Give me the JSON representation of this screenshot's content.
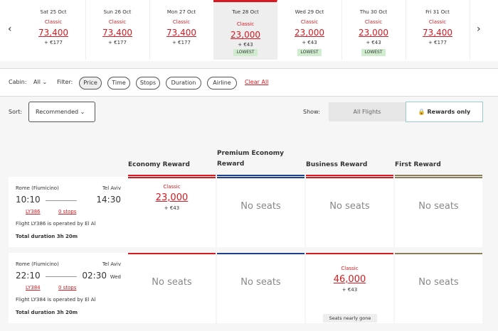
{
  "dates": [
    {
      "day": "Sat 25 Oct",
      "tier": "Classic",
      "points": "73,400",
      "fee": "+ €177"
    },
    {
      "day": "Sun 26 Oct",
      "tier": "Classic",
      "points": "73,400",
      "fee": "+ €177"
    },
    {
      "day": "Mon 27 Oct",
      "tier": "Classic",
      "points": "73,400",
      "fee": "+ €177"
    },
    {
      "day": "Tue 28 Oct",
      "tier": "Classic",
      "points": "23,000",
      "fee": "+ €43",
      "badge": "LOWEST",
      "selected": true
    },
    {
      "day": "Wed 29 Oct",
      "tier": "Classic",
      "points": "23,000",
      "fee": "+ €43",
      "badge": "LOWEST"
    },
    {
      "day": "Thu 30 Oct",
      "tier": "Classic",
      "points": "23,000",
      "fee": "+ €43",
      "badge": "LOWEST"
    },
    {
      "day": "Fri 31 Oct",
      "tier": "Classic",
      "points": "73,400",
      "fee": "+ €177"
    }
  ],
  "filters": {
    "cabin_label": "Cabin:",
    "cabin_value": "All",
    "filter_label": "Filter:",
    "buttons": [
      "Price",
      "Time",
      "Stops",
      "Duration",
      "Airline"
    ],
    "clear": "Clear All"
  },
  "sort": {
    "label": "Sort:",
    "value": "Recommended"
  },
  "show": {
    "label": "Show:",
    "options": [
      "All Flights",
      "Rewards only"
    ]
  },
  "columns": [
    {
      "name": "Economy Reward",
      "color": "#d71a21"
    },
    {
      "name": "Premium Economy Reward",
      "color": "#1f3f8f"
    },
    {
      "name": "Business Reward",
      "color": "#d71a21"
    },
    {
      "name": "First Reward",
      "color": "#8a7f5a"
    }
  ],
  "flights": [
    {
      "from": "Rome (Fiumicino)",
      "to": "Tel Aviv",
      "dep": "10:10",
      "arr": "14:30",
      "flight": "LY386",
      "stops": "0 stops",
      "operated": "Flight LY386 is operated by El Al",
      "duration": "Total duration 3h 20m",
      "cells": [
        {
          "tier": "Classic",
          "points": "23,000",
          "fee": "+ €43"
        },
        {
          "text": "No seats"
        },
        {
          "text": "No seats"
        },
        {
          "text": "No seats"
        }
      ]
    },
    {
      "from": "Rome (Fiumicino)",
      "to": "Tel Aviv",
      "dep": "22:10",
      "arr": "02:30",
      "arr_day": "Wed",
      "flight": "LY384",
      "stops": "0 stops",
      "operated": "Flight LY384 is operated by El Al",
      "duration": "Total duration 3h 20m",
      "cells": [
        {
          "text": "No seats"
        },
        {
          "text": "No seats"
        },
        {
          "tier": "Classic",
          "points": "46,000",
          "fee": "+ €43",
          "note": "Seats nearly gone"
        },
        {
          "text": "No seats"
        }
      ]
    }
  ]
}
